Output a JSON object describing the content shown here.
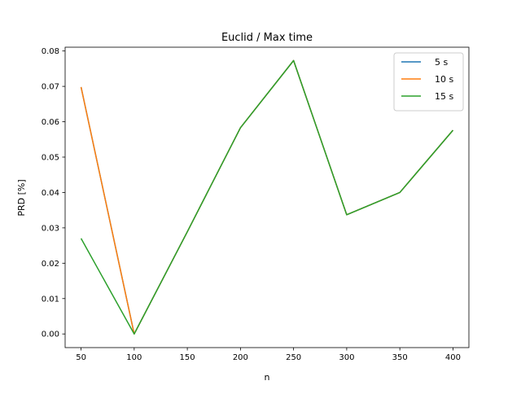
{
  "chart_data": {
    "type": "line",
    "title": "Euclid / Max time",
    "xlabel": "n",
    "ylabel": "PRD [%]",
    "x": [
      50,
      100,
      150,
      200,
      250,
      300,
      350,
      400
    ],
    "xlim": [
      35,
      415
    ],
    "ylim": [
      -0.00386,
      0.08107
    ],
    "xticks": [
      50,
      100,
      150,
      200,
      250,
      300,
      350,
      400
    ],
    "yticks": [
      0.0,
      0.01,
      0.02,
      0.03,
      0.04,
      0.05,
      0.06,
      0.07,
      0.08
    ],
    "ytick_labels": [
      "0.00",
      "0.01",
      "0.02",
      "0.03",
      "0.04",
      "0.05",
      "0.06",
      "0.07",
      "0.08"
    ],
    "legend_position": "top-right",
    "grid": false,
    "series": [
      {
        "name": "5 s",
        "color": "#1f77b4",
        "values": [
          0.0698,
          0.0,
          0.0289,
          0.0583,
          0.0773,
          0.0337,
          0.04,
          0.0576
        ]
      },
      {
        "name": "10 s",
        "color": "#ff7f0e",
        "values": [
          0.0698,
          0.0,
          0.0289,
          0.0583,
          0.0773,
          0.0337,
          0.04,
          0.0576
        ]
      },
      {
        "name": "15 s",
        "color": "#2ca02c",
        "values": [
          0.027,
          0.0,
          0.0289,
          0.0583,
          0.0773,
          0.0337,
          0.04,
          0.0576
        ]
      }
    ]
  }
}
